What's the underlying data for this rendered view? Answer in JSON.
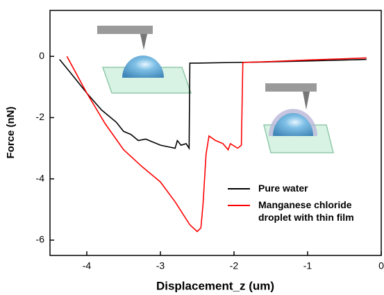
{
  "chart_data": {
    "type": "line",
    "xlabel": "Displacement_z (um)",
    "ylabel": "Force (nN)",
    "xlim": [
      -4.5,
      0
    ],
    "ylim": [
      -6.5,
      1.5
    ],
    "xticks": [
      -4,
      -3,
      -2,
      -1,
      0
    ],
    "yticks": [
      0,
      -2,
      -4,
      -6
    ],
    "series": [
      {
        "name": "Pure water",
        "color": "#000000",
        "x": [
          -4.37,
          -4.2,
          -4.0,
          -3.8,
          -3.6,
          -3.5,
          -3.45,
          -3.4,
          -3.3,
          -3.2,
          -3.1,
          -3.0,
          -2.9,
          -2.8,
          -2.77,
          -2.72,
          -2.65,
          -2.61,
          -2.6,
          -2.5,
          -2.0,
          -1.5,
          -1.0,
          -0.5,
          -0.2
        ],
        "values": [
          -0.1,
          -0.6,
          -1.2,
          -1.75,
          -2.15,
          -2.45,
          -2.5,
          -2.55,
          -2.75,
          -2.7,
          -2.8,
          -2.9,
          -2.95,
          -3.0,
          -2.75,
          -2.9,
          -2.85,
          -3.0,
          -0.22,
          -0.22,
          -0.2,
          -0.18,
          -0.15,
          -0.12,
          -0.1
        ]
      },
      {
        "name": "Manganese chloride droplet with thin film",
        "color": "#ff0000",
        "x": [
          -4.27,
          -4.0,
          -3.75,
          -3.5,
          -3.25,
          -3.0,
          -2.8,
          -2.6,
          -2.5,
          -2.45,
          -2.42,
          -2.38,
          -2.34,
          -2.25,
          -2.15,
          -2.08,
          -2.05,
          -1.95,
          -1.9,
          -1.88,
          -1.5,
          -1.0,
          -0.5,
          -0.2
        ],
        "values": [
          0,
          -1.2,
          -2.2,
          -3.05,
          -3.6,
          -4.1,
          -4.75,
          -5.5,
          -5.72,
          -5.6,
          -4.8,
          -3.2,
          -2.6,
          -2.75,
          -2.85,
          -3.05,
          -2.85,
          -3.0,
          -2.9,
          -0.2,
          -0.17,
          -0.12,
          -0.08,
          -0.05
        ]
      }
    ]
  }
}
